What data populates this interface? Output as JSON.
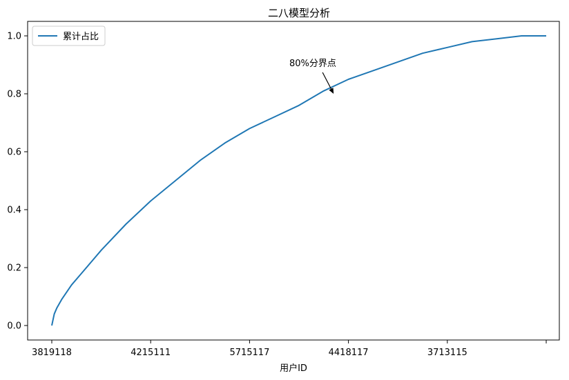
{
  "chart_data": {
    "type": "line",
    "title": "二八模型分析",
    "xlabel": "用户ID",
    "ylabel": "",
    "x_tick_labels": [
      "3819118",
      "4215111",
      "5715117",
      "4418117",
      "3713115",
      ""
    ],
    "x_tick_positions": [
      0,
      0.2,
      0.4,
      0.6,
      0.8,
      1.0
    ],
    "y_ticks": [
      0.0,
      0.2,
      0.4,
      0.6,
      0.8,
      1.0
    ],
    "y_tick_labels": [
      "0.0",
      "0.2",
      "0.4",
      "0.6",
      "0.8",
      "1.0"
    ],
    "ylim": [
      -0.05,
      1.05
    ],
    "grid": false,
    "legend_placement": "top-left",
    "series": [
      {
        "name": "累计占比",
        "color": "#1f77b4",
        "x": [
          0,
          0.005,
          0.01,
          0.02,
          0.04,
          0.06,
          0.08,
          0.1,
          0.15,
          0.2,
          0.25,
          0.3,
          0.35,
          0.4,
          0.45,
          0.5,
          0.55,
          0.6,
          0.65,
          0.7,
          0.75,
          0.8,
          0.85,
          0.9,
          0.95,
          1.0
        ],
        "values": [
          0.0,
          0.04,
          0.06,
          0.09,
          0.14,
          0.18,
          0.22,
          0.26,
          0.35,
          0.43,
          0.5,
          0.57,
          0.63,
          0.68,
          0.72,
          0.76,
          0.81,
          0.85,
          0.88,
          0.91,
          0.94,
          0.96,
          0.98,
          0.99,
          1.0,
          1.0
        ]
      }
    ],
    "annotation": {
      "text": "80%分界点",
      "x": 0.57,
      "y": 0.8
    }
  }
}
